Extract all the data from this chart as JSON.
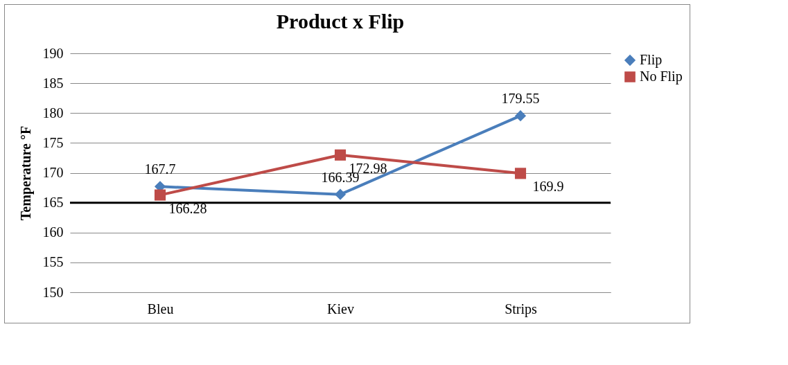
{
  "chart_data": {
    "type": "line",
    "title": "Product x Flip",
    "ylabel": "Temperature °F",
    "categories": [
      "Bleu",
      "Kiev",
      "Strips"
    ],
    "series": [
      {
        "name": "Flip",
        "color": "#4a7ebb",
        "marker": "diamond",
        "values": [
          167.7,
          166.39,
          179.55
        ]
      },
      {
        "name": "No Flip",
        "color": "#be4b48",
        "marker": "square",
        "values": [
          166.28,
          172.98,
          169.9
        ]
      }
    ],
    "ylim": [
      150,
      190
    ],
    "yticks": [
      150,
      155,
      160,
      165,
      170,
      175,
      180,
      185,
      190
    ],
    "ref_lines": [
      {
        "axis": "y",
        "value": 165,
        "color": "#000000"
      }
    ],
    "grid": "y",
    "legend": "right",
    "data_labels": true
  }
}
